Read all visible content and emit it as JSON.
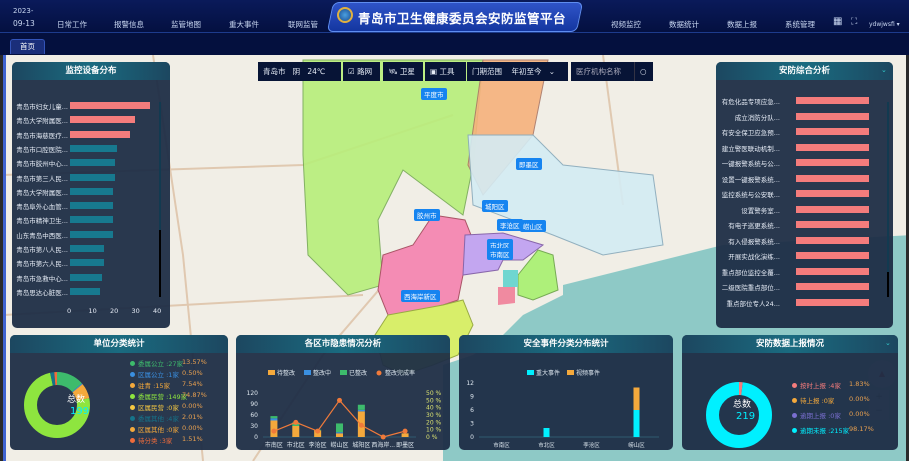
{
  "header": {
    "date_line1": "2023-",
    "date_line2": "09-13",
    "title": "青岛市卫生健康委员会安防监管平台",
    "nav_left": [
      "日常工作",
      "报警信息",
      "监管地图",
      "重大事件",
      "联网监管"
    ],
    "nav_right": [
      "视频监控",
      "数据统计",
      "数据上报",
      "系统管理"
    ],
    "user": "ydwjwsfi"
  },
  "tabs": [
    {
      "label": "首页",
      "active": true
    }
  ],
  "toolbar": {
    "city": "青岛市",
    "weather": "阴",
    "temperature": "24℃",
    "roadnet_label": "路网",
    "roadnet_checked": true,
    "satellite_label": "卫星",
    "tools_label": "工具",
    "range_label": "门期范围",
    "range_value": "年初至今",
    "search_placeholder": "医疗机构名称"
  },
  "map": {
    "labels": [
      "平度市",
      "即墨区",
      "胶州市",
      "城阳区",
      "李沧区",
      "崂山区",
      "市北区",
      "市南区",
      "西海岸新区"
    ]
  },
  "colors": {
    "accent": "#1684f0",
    "red_bar": "#f47c7c",
    "teal_bar": "#17798f",
    "cyan": "#00f0ff",
    "orange": "#f4a93c",
    "green": "#3dbb6c",
    "blue": "#3a8fe0"
  },
  "chart_data": [
    {
      "id": "monitor",
      "type": "bar",
      "orientation": "horizontal",
      "title": "监控设备分布",
      "categories": [
        "青岛市妇女儿童...",
        "青岛大学附属医...",
        "青岛市海慈医疗...",
        "青岛市口腔医院...",
        "青岛市胶州中心...",
        "青岛市第三人民...",
        "青岛大学附属医...",
        "青岛阜外心血管...",
        "青岛市精神卫生...",
        "山东青岛中西医...",
        "青岛市第八人民...",
        "青岛市第六人民...",
        "青岛市急救中心...",
        "青岛思达心脏医..."
      ],
      "values": [
        37,
        30,
        28,
        22,
        21,
        21,
        20,
        20,
        20,
        20,
        16,
        16,
        15,
        14
      ],
      "xlim": [
        0,
        40
      ],
      "xticks": [
        "0",
        "10",
        "20",
        "30",
        "40"
      ]
    },
    {
      "id": "security",
      "type": "bar",
      "orientation": "horizontal",
      "title": "安防综合分析",
      "categories": [
        "有危化品专项应急...",
        "成立消防分队...",
        "有安全保卫应急预...",
        "建立警医联动机制...",
        "一键报警系统与公...",
        "设置一键报警系统...",
        "监控系统与公安联...",
        "设置警务室...",
        "有电子巡更系统...",
        "有入侵报警系统...",
        "开展实战化演练...",
        "重点部位监控全覆...",
        "二级医院重点部位...",
        "重点部位专人24..."
      ],
      "values": [
        100,
        100,
        100,
        100,
        100,
        100,
        100,
        100,
        100,
        100,
        100,
        100,
        100,
        100
      ],
      "xlim": [
        0,
        100
      ]
    },
    {
      "id": "unit",
      "type": "pie",
      "title": "单位分类统计",
      "center_label": "总数",
      "total": "199",
      "legend": [
        {
          "name": "委属公立",
          "count": "27家",
          "pct": "13.57%",
          "value": 27,
          "color": "#3dbb6c"
        },
        {
          "name": "区属公立",
          "count": "1家",
          "pct": "0.50%",
          "value": 1,
          "color": "#3a8fe0"
        },
        {
          "name": "驻青",
          "count": "15家",
          "pct": "7.54%",
          "value": 15,
          "color": "#f4a93c"
        },
        {
          "name": "委属民营",
          "count": "149家",
          "pct": "74.87%",
          "value": 149,
          "color": "#8ee53f"
        },
        {
          "name": "区属民营",
          "count": "0家",
          "pct": "0.00%",
          "value": 0,
          "color": "#f5c842"
        },
        {
          "name": "委属其他",
          "count": "4家",
          "pct": "2.01%",
          "value": 4,
          "color": "#16748a"
        },
        {
          "name": "区属其他",
          "count": "0家",
          "pct": "0.00%",
          "value": 0,
          "color": "#f4a93c"
        },
        {
          "name": "待分类",
          "count": "3家",
          "pct": "1.51%",
          "value": 3,
          "color": "#f06c3b"
        }
      ]
    },
    {
      "id": "hazard",
      "type": "bar",
      "stacked": true,
      "title": "各区市隐患情况分析",
      "categories": [
        "市南区",
        "市北区",
        "李沧区",
        "崂山区",
        "城阳区",
        "西海岸...",
        "即墨区"
      ],
      "series": [
        {
          "name": "待整改",
          "color": "#f4a93c",
          "values": [
            45,
            30,
            18,
            10,
            70,
            0,
            10
          ]
        },
        {
          "name": "整改中",
          "color": "#3a8fe0",
          "values": [
            6,
            0,
            0,
            3,
            4,
            0,
            0
          ]
        },
        {
          "name": "已整改",
          "color": "#3dbb6c",
          "values": [
            6,
            10,
            2,
            24,
            14,
            0,
            0
          ]
        }
      ],
      "line": {
        "name": "整改完成率",
        "color": "#f07a3a",
        "values": [
          8,
          20,
          8,
          50,
          16,
          0,
          8
        ]
      },
      "ylim": [
        0,
        120
      ],
      "yticks": [
        "0",
        "30",
        "60",
        "90",
        "120"
      ],
      "y2ticks": [
        "0 %",
        "10 %",
        "20 %",
        "30 %",
        "40 %",
        "50 %",
        "50 %"
      ],
      "y2lim": [
        0,
        60
      ]
    },
    {
      "id": "events",
      "type": "bar",
      "stacked": true,
      "title": "安全事件分类分布统计",
      "categories": [
        "市南区",
        "市北区",
        "李沧区",
        "崂山区"
      ],
      "series": [
        {
          "name": "重大事件",
          "color": "#00f0ff",
          "values": [
            0,
            2,
            0,
            6
          ]
        },
        {
          "name": "视频事件",
          "color": "#f4a93c",
          "values": [
            0,
            0,
            0,
            5
          ]
        }
      ],
      "ylim": [
        0,
        12
      ],
      "yticks": [
        "0",
        "3",
        "6",
        "9",
        "12"
      ]
    },
    {
      "id": "report",
      "type": "pie",
      "title": "安防数据上报情况",
      "center_label": "总数",
      "total": "219",
      "legend": [
        {
          "name": "按时上报",
          "count": "4家",
          "pct": "1.83%",
          "value": 4,
          "color": "#f47c7c"
        },
        {
          "name": "待上报",
          "count": "0家",
          "pct": "0.00%",
          "value": 0,
          "color": "#f4a93c"
        },
        {
          "name": "逾期上报",
          "count": "0家",
          "pct": "0.00%",
          "value": 0,
          "color": "#7a6fd0"
        },
        {
          "name": "逾期未报",
          "count": "215家",
          "pct": "98.17%",
          "value": 215,
          "color": "#00f0ff"
        }
      ]
    }
  ]
}
